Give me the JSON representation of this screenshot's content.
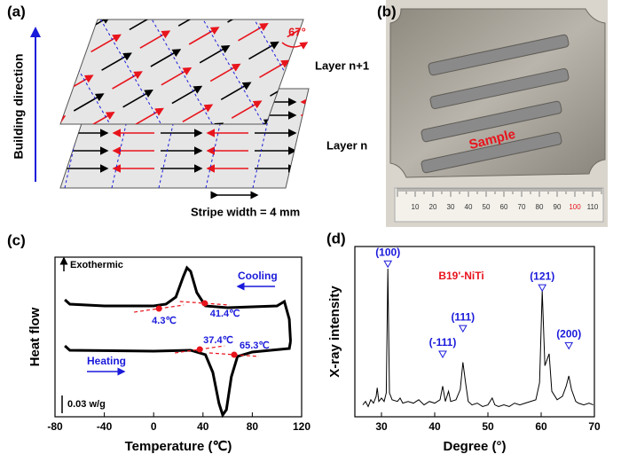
{
  "panel_a": {
    "label": "(a)",
    "axis_label": "Building direction",
    "angle": "67°",
    "layer_top": "Layer  n+1",
    "layer_bottom": "Layer  n",
    "stripe_width": "Stripe width = 4 mm"
  },
  "panel_b": {
    "label": "(b)",
    "sample": "Sample",
    "ruler": [
      "10",
      "20",
      "30",
      "40",
      "50",
      "60",
      "70",
      "80",
      "90",
      "100",
      "110"
    ]
  },
  "chart_data": [
    {
      "type": "line",
      "panel_label": "(c)",
      "xlabel": "Temperature (℃)",
      "ylabel": "Heat flow",
      "xlim": [
        -80,
        120
      ],
      "xticks": [
        -80,
        -40,
        0,
        40,
        80,
        120
      ],
      "ylim": [
        0,
        0.27
      ],
      "annotation": "Exothermic",
      "scale_bar": {
        "value": 0.03,
        "label": "0.03 w/g"
      },
      "series": [
        {
          "name": "Cooling",
          "color": "#000000",
          "x": [
            -72,
            -68,
            -40,
            0,
            10,
            18,
            24,
            27,
            30,
            35,
            42,
            60,
            100,
            106,
            110,
            111
          ],
          "values": [
            0.198,
            0.1905,
            0.1875,
            0.1875,
            0.1905,
            0.2025,
            0.237,
            0.252,
            0.246,
            0.21,
            0.1875,
            0.1845,
            0.1875,
            0.195,
            0.165,
            0.1275
          ]
        },
        {
          "name": "Heating",
          "color": "#000000",
          "x": [
            -72,
            -68,
            0,
            30,
            42,
            48,
            53,
            56,
            59,
            63,
            68,
            80,
            110,
            111
          ],
          "values": [
            0.12,
            0.1125,
            0.111,
            0.1125,
            0.105,
            0.075,
            0.0225,
            0.003,
            0.012,
            0.0675,
            0.102,
            0.1095,
            0.1155,
            0.1275
          ]
        }
      ],
      "onsets": [
        {
          "x": 4.3,
          "y": 0.183,
          "label": "4.3℃"
        },
        {
          "x": 41.4,
          "y": 0.192,
          "label": "41.4℃"
        },
        {
          "x": 37.4,
          "y": 0.114,
          "label": "37.4℃"
        },
        {
          "x": 65.3,
          "y": 0.105,
          "label": "65.3℃"
        }
      ]
    },
    {
      "type": "line",
      "panel_label": "(d)",
      "xlabel": "Degree (°)",
      "ylabel": "X-ray intensity",
      "xlim": [
        25,
        70
      ],
      "xticks": [
        30,
        40,
        50,
        60,
        70
      ],
      "ylim": [
        0,
        100
      ],
      "annotation": "B19'-NiTi",
      "series": [
        {
          "color": "#000000",
          "x": [
            26.5,
            27,
            27.5,
            28,
            28.5,
            29,
            29.2,
            29.5,
            30,
            30.5,
            30.9,
            31.2,
            31.5,
            32,
            33,
            33.5,
            34,
            35,
            36,
            37,
            38,
            39,
            40,
            41,
            41.5,
            42,
            42.6,
            43,
            44,
            44.8,
            45.3,
            45.8,
            46.3,
            47,
            48,
            49,
            50,
            50.8,
            51.3,
            52,
            53,
            54,
            55,
            56,
            57,
            58,
            59,
            59.7,
            60.2,
            60.7,
            61.5,
            62,
            63,
            64,
            64.7,
            65.2,
            65.7,
            66.5,
            67,
            68,
            69,
            69.8
          ],
          "values": [
            7,
            9,
            6,
            10,
            8,
            12,
            17,
            9,
            11,
            9,
            14,
            87,
            14,
            10,
            9,
            11,
            8,
            9,
            8,
            10,
            7,
            9,
            8,
            10,
            18,
            9,
            15,
            9,
            10,
            16,
            32,
            20,
            9,
            7,
            8,
            6,
            7,
            11,
            7,
            6,
            7,
            6,
            8,
            7,
            8,
            9,
            10,
            20,
            74,
            30,
            37,
            15,
            10,
            12,
            18,
            24,
            16,
            9,
            8,
            7,
            8,
            7
          ]
        }
      ],
      "peaks": [
        {
          "label": "(100)",
          "x": 31.2,
          "y": 90
        },
        {
          "label": "(-111)",
          "x": 41.5,
          "y": 37
        },
        {
          "label": "(111)",
          "x": 45.3,
          "y": 52
        },
        {
          "label": "(121)",
          "x": 60.2,
          "y": 76
        },
        {
          "label": "(200)",
          "x": 65.2,
          "y": 42
        }
      ]
    }
  ]
}
